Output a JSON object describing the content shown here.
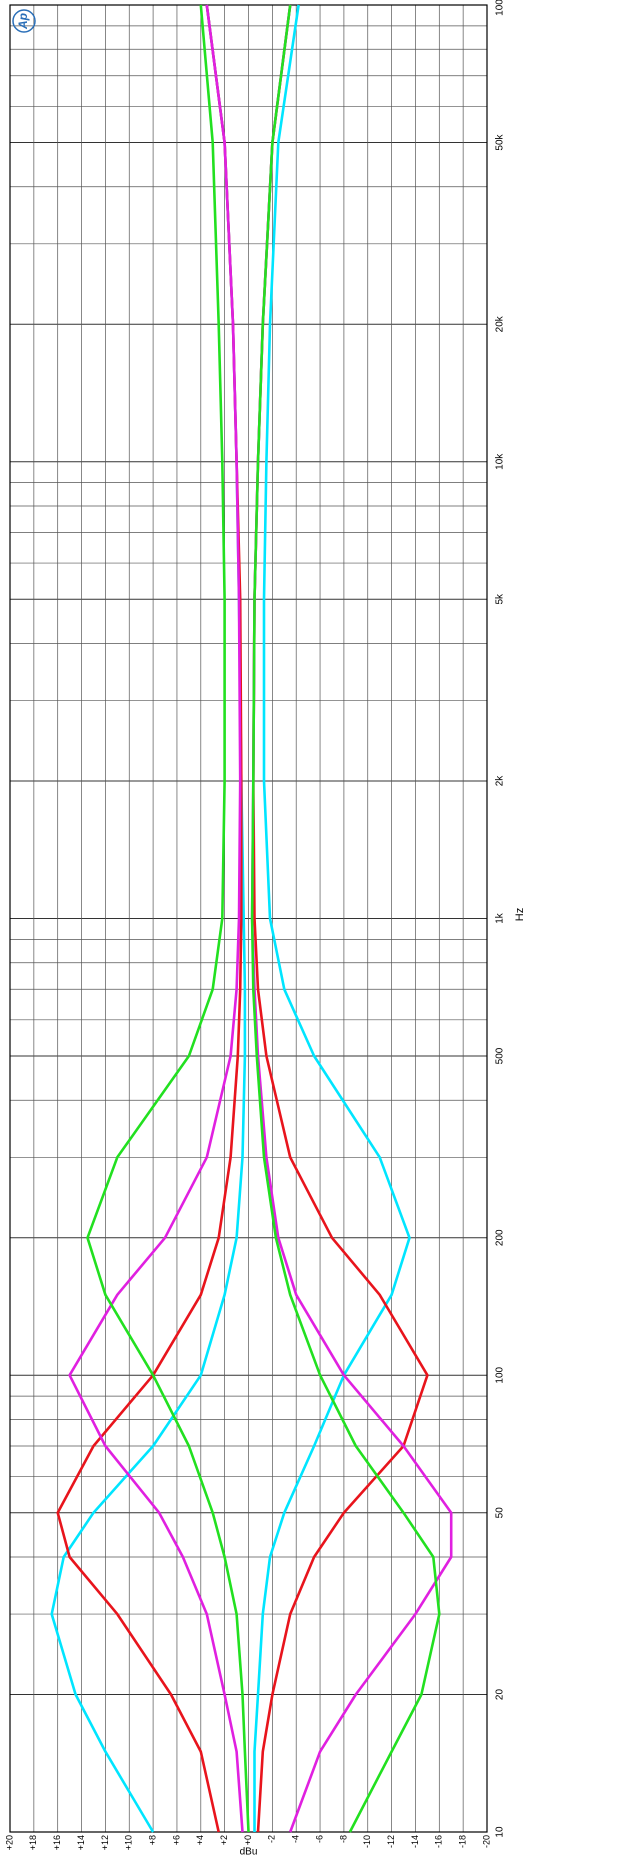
{
  "chart_data": {
    "type": "line",
    "x_label": "Hz",
    "y_label": "dBu",
    "logo": "Ap",
    "xscale": "log",
    "x": [
      10,
      15,
      20,
      30,
      40,
      50,
      70,
      100,
      150,
      200,
      300,
      500,
      700,
      1000,
      2000,
      5000,
      10000,
      20000,
      50000,
      100000
    ],
    "xlim": [
      10,
      100000
    ],
    "xticks": [
      10,
      20,
      50,
      100,
      200,
      500,
      {
        "value": 1000,
        "label": "1k"
      },
      {
        "value": 2000,
        "label": "2k"
      },
      {
        "value": 5000,
        "label": "5k"
      },
      {
        "value": 10000,
        "label": "10k"
      },
      {
        "value": 20000,
        "label": "20k"
      },
      {
        "value": 50000,
        "label": "50k"
      },
      {
        "value": 100000,
        "label": "100k"
      }
    ],
    "xminorticks": [
      30,
      40,
      60,
      70,
      80,
      90,
      300,
      400,
      600,
      700,
      800,
      900,
      3000,
      4000,
      6000,
      7000,
      8000,
      9000,
      30000,
      40000,
      60000,
      70000,
      80000,
      90000
    ],
    "ylim": [
      -20,
      20
    ],
    "yticks": [
      {
        "value": 20,
        "label": "+20"
      },
      {
        "value": 18,
        "label": "+18"
      },
      {
        "value": 16,
        "label": "+16"
      },
      {
        "value": 14,
        "label": "+14"
      },
      {
        "value": 12,
        "label": "+12"
      },
      {
        "value": 10,
        "label": "+10"
      },
      {
        "value": 8,
        "label": "+8"
      },
      {
        "value": 6,
        "label": "+6"
      },
      {
        "value": 4,
        "label": "+4"
      },
      {
        "value": 2,
        "label": "+2"
      },
      {
        "value": 0,
        "label": "+0"
      },
      -2,
      -4,
      -6,
      -8,
      -10,
      -12,
      -14,
      -16,
      -18,
      -20
    ],
    "grid": true,
    "series": [
      {
        "color": "#00e5ff",
        "values": [
          8,
          12,
          14.5,
          16.5,
          15.5,
          13,
          8,
          4,
          2,
          1,
          0.5,
          0.3,
          0.3,
          0.4,
          0.6,
          0.8,
          1,
          1.3,
          2,
          3.5
        ]
      },
      {
        "color": "#e8141c",
        "values": [
          2.5,
          4,
          6.5,
          11,
          15,
          16,
          13,
          8,
          4,
          2.5,
          1.5,
          0.9,
          0.7,
          0.6,
          0.6,
          0.7,
          1,
          1.3,
          2,
          3.5
        ]
      },
      {
        "color": "#e020e0",
        "values": [
          0.5,
          1,
          2,
          3.5,
          5.5,
          7.5,
          12,
          15,
          11,
          7,
          3.5,
          1.5,
          1,
          0.8,
          0.7,
          0.8,
          1,
          1.3,
          2,
          3.5
        ]
      },
      {
        "color": "#22e020",
        "values": [
          0,
          0.3,
          0.5,
          1,
          2,
          3,
          5,
          8,
          12,
          13.5,
          11,
          5,
          3,
          2.2,
          2,
          2,
          2.2,
          2.5,
          3,
          4
        ]
      },
      {
        "color": "#00e5ff",
        "values": [
          -0.5,
          -0.5,
          -0.8,
          -1.2,
          -1.8,
          -3,
          -5.5,
          -8,
          -12,
          -13.5,
          -11,
          -5.5,
          -3,
          -1.8,
          -1.3,
          -1.3,
          -1.5,
          -1.8,
          -2.5,
          -4.2
        ]
      },
      {
        "color": "#e8141c",
        "values": [
          -0.8,
          -1.2,
          -2,
          -3.5,
          -5.5,
          -8,
          -13,
          -15,
          -11,
          -7,
          -3.5,
          -1.5,
          -0.8,
          -0.5,
          -0.4,
          -0.5,
          -0.8,
          -1.2,
          -2,
          -3.5
        ]
      },
      {
        "color": "#e020e0",
        "values": [
          -3.5,
          -6,
          -9,
          -14,
          -17,
          -17,
          -13,
          -8,
          -4,
          -2.5,
          -1.5,
          -0.8,
          -0.5,
          -0.3,
          -0.4,
          -0.5,
          -0.8,
          -1.2,
          -2,
          -3.5
        ]
      },
      {
        "color": "#22e020",
        "values": [
          -8.5,
          -12,
          -14.5,
          -16,
          -15.5,
          -13,
          -9,
          -6,
          -3.5,
          -2.3,
          -1.3,
          -0.7,
          -0.4,
          -0.3,
          -0.4,
          -0.5,
          -0.8,
          -1.2,
          -2,
          -3.5
        ]
      }
    ]
  }
}
